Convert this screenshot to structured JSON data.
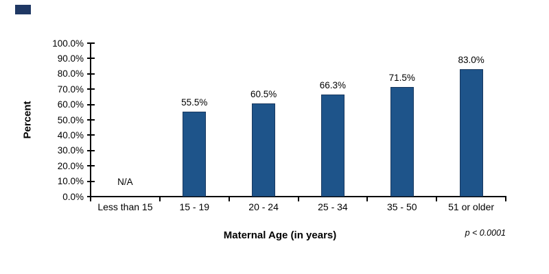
{
  "page": {
    "background": "#ffffff"
  },
  "decor": {
    "corner_accent_color": "#1F3864"
  },
  "chart_data": {
    "type": "bar",
    "title": "",
    "categories": [
      "Less than 15",
      "15 - 19",
      "20 - 24",
      "25 - 34",
      "35 - 50",
      "51 or older"
    ],
    "values": [
      null,
      55.5,
      60.5,
      66.3,
      71.5,
      83.0
    ],
    "value_labels": [
      "N/A",
      "55.5%",
      "60.5%",
      "66.3%",
      "71.5%",
      "83.0%"
    ],
    "xlabel": "Maternal Age (in years)",
    "ylabel": "Percent",
    "ylim": [
      0,
      100
    ],
    "y_tick_step": 10,
    "y_tick_labels": [
      "0.0%",
      "10.0%",
      "20.0%",
      "30.0%",
      "40.0%",
      "50.0%",
      "60.0%",
      "70.0%",
      "80.0%",
      "90.0%",
      "100.0%"
    ],
    "annotation": "p < 0.0001",
    "bar_color": "#1E548A",
    "bar_border_color": "#17375E",
    "axis_color": "#000000",
    "grid": false,
    "legend": false
  }
}
